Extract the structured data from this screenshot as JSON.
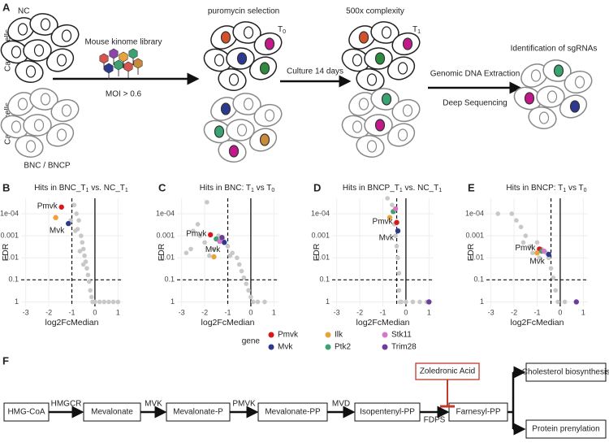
{
  "panel_a": {
    "label": "A",
    "nc": "NC",
    "cas9_top": "Cas9+ cells",
    "cas9_bottom": "Cas9+ cells",
    "bnc": "BNC / BNCP",
    "library": "Mouse kinome library",
    "moi": "MOI > 0.6",
    "puro": "puromycin selection",
    "t0": {
      "t": "T",
      "sub": "0"
    },
    "culture": "Culture 14 days",
    "complexity": "500x complexity",
    "t1": {
      "t": "T",
      "sub": "1"
    },
    "gdna": "Genomic DNA Extraction",
    "seq": "Deep Sequencing",
    "ident": "Identification of sgRNAs"
  },
  "chart_data": [
    {
      "type": "scatter",
      "label": "B",
      "title": [
        {
          "text": "Hits in  BNC_T"
        },
        {
          "sub": "1"
        },
        {
          "text": " vs. NC_T"
        },
        {
          "sub": "1"
        }
      ],
      "xlabel": "log2FcMedian",
      "ylabel": "FDR",
      "log_y": true,
      "grid": true,
      "xlim": [
        -3.2,
        1.2
      ],
      "ylim": [
        1.6,
        2e-05
      ],
      "xticks": [
        -3,
        -2,
        -1,
        0,
        1
      ],
      "yticks": [
        {
          "value": 0.0001,
          "label": "1e-04"
        },
        0.001,
        0.01,
        0.1,
        1
      ],
      "vline_dashed": -1,
      "hline_dashed": 0.1,
      "background": {
        "color": "#c8c8c8",
        "x": [
          -0.9,
          -0.8,
          -0.7,
          -0.75,
          -0.6,
          -0.55,
          -0.5,
          -0.45,
          -0.4,
          -0.35,
          -0.3,
          -0.25,
          -0.2,
          -0.15,
          -0.1,
          0,
          0.2,
          0.4,
          0.6,
          0.8,
          1,
          -1.05,
          -0.85,
          -0.65,
          -0.5
        ],
        "y": [
          4e-05,
          0.0001,
          0.0002,
          0.0005,
          0.001,
          0.002,
          0.004,
          0.008,
          0.015,
          0.03,
          0.06,
          0.12,
          0.3,
          0.6,
          1,
          1,
          1,
          1,
          1,
          1,
          1,
          0.0002,
          0.0006,
          0.005,
          0.02
        ]
      },
      "series": [
        {
          "x": [
            -1.45
          ],
          "y": [
            5e-05
          ]
        },
        {
          "x": [
            -1.15
          ],
          "y": [
            0.00028
          ]
        },
        {
          "x": [
            -1.7
          ],
          "y": [
            0.00015
          ]
        },
        {
          "x": [],
          "y": []
        },
        {
          "x": [],
          "y": []
        },
        {
          "x": [],
          "y": []
        }
      ],
      "annotations": [
        "Pmvk",
        "Mvk"
      ]
    },
    {
      "type": "scatter",
      "label": "C",
      "title": [
        {
          "text": "Hits in BNC: T"
        },
        {
          "sub": "1"
        },
        {
          "text": " vs T"
        },
        {
          "sub": "0"
        }
      ],
      "xlabel": "log2FcMedian",
      "ylabel": "FDR",
      "log_y": true,
      "grid": true,
      "xlim": [
        -3.2,
        1.2
      ],
      "ylim": [
        1.6,
        2e-05
      ],
      "xticks": [
        -3,
        -2,
        -1,
        0,
        1
      ],
      "yticks": [
        {
          "value": 0.0001,
          "label": "1e-04"
        },
        0.001,
        0.01,
        0.1,
        1
      ],
      "vline_dashed": -1,
      "hline_dashed": 0.1,
      "background": {
        "color": "#c8c8c8",
        "x": [
          -1.9,
          -2.3,
          -2.5,
          -2.2,
          -2.0,
          -2.8,
          -1.8,
          -1.6,
          -1.2,
          -1.0,
          -0.8,
          -0.6,
          -0.5,
          -0.4,
          -0.3,
          -0.2,
          -0.1,
          0,
          0.1,
          0.3,
          0.6,
          -1.4,
          -0.9,
          -2.6
        ],
        "y": [
          3e-05,
          0.0003,
          0.0006,
          0.001,
          0.002,
          0.006,
          0.008,
          0.004,
          0.0015,
          0.003,
          0.006,
          0.01,
          0.02,
          0.04,
          0.08,
          0.15,
          0.3,
          0.6,
          1,
          1,
          1,
          0.001,
          0.008,
          0.004
        ]
      },
      "series": [
        {
          "x": [
            -1.75
          ],
          "y": [
            0.0009
          ]
        },
        {
          "x": [
            -1.15
          ],
          "y": [
            0.002
          ]
        },
        {
          "x": [
            -1.6
          ],
          "y": [
            0.009
          ]
        },
        {
          "x": [
            -1.5
          ],
          "y": [
            0.0014
          ]
        },
        {
          "x": [
            -1.35
          ],
          "y": [
            0.0018
          ]
        },
        {
          "x": [
            -1.25
          ],
          "y": [
            0.0012
          ]
        }
      ],
      "annotations": [
        "Pmvk",
        "Mvk"
      ]
    },
    {
      "type": "scatter",
      "label": "D",
      "title": [
        {
          "text": "Hits in BNCP_T"
        },
        {
          "sub": "1"
        },
        {
          "text": " vs. NC_T"
        },
        {
          "sub": "1"
        }
      ],
      "xlabel": "log2FcMedian",
      "ylabel": "FDR",
      "log_y": true,
      "grid": true,
      "xlim": [
        -3.2,
        1.2
      ],
      "ylim": [
        1.6,
        2e-05
      ],
      "xticks": [
        -3,
        -2,
        -1,
        0,
        1
      ],
      "yticks": [
        {
          "value": 0.0001,
          "label": "1e-04"
        },
        0.001,
        0.01,
        0.1,
        1
      ],
      "vline_dashed": -0.4,
      "hline_dashed": 0.1,
      "background": {
        "color": "#c8c8c8",
        "x": [
          -0.8,
          -0.6,
          -0.5,
          -0.45,
          -0.4,
          -0.35,
          -0.3,
          -0.3,
          -0.2,
          0,
          0.3,
          0.6,
          0.9,
          -0.25
        ],
        "y": [
          2e-05,
          4e-05,
          0.0003,
          0.001,
          0.003,
          0.01,
          0.05,
          0.3,
          1,
          1,
          1,
          1,
          1,
          1
        ]
      },
      "series": [
        {
          "x": [
            -0.4
          ],
          "y": [
            0.00025
          ]
        },
        {
          "x": [
            -0.35
          ],
          "y": [
            0.0006
          ]
        },
        {
          "x": [
            -0.7
          ],
          "y": [
            0.00015
          ]
        },
        {
          "x": [
            -0.55
          ],
          "y": [
            8e-05
          ]
        },
        {
          "x": [
            -0.45
          ],
          "y": [
            6e-05
          ]
        },
        {
          "x": [
            1
          ],
          "y": [
            1
          ]
        }
      ],
      "annotations": [
        "Pmvk",
        "Mvk"
      ]
    },
    {
      "type": "scatter",
      "label": "E",
      "title": [
        {
          "text": "Hits in BNCP: T"
        },
        {
          "sub": "1"
        },
        {
          "text": " vs T"
        },
        {
          "sub": "0"
        }
      ],
      "xlabel": "log2FcMedian",
      "ylabel": "FDR",
      "log_y": true,
      "grid": true,
      "xlim": [
        -3.2,
        1.2
      ],
      "ylim": [
        1.6,
        2e-05
      ],
      "xticks": [
        -3,
        -2,
        -1,
        0,
        1
      ],
      "yticks": [
        {
          "value": 0.0001,
          "label": "1e-04"
        },
        0.001,
        0.01,
        0.1,
        1
      ],
      "vline_dashed": -0.4,
      "hline_dashed": 0.1,
      "background": {
        "color": "#c8c8c8",
        "x": [
          -2.7,
          -2.1,
          -1.9,
          -1.7,
          -1.5,
          -1.3,
          -1.0,
          -0.8,
          -0.6,
          -0.5,
          -0.4,
          -0.3,
          -0.2,
          -0.1,
          0.2,
          -1.6,
          -1.2,
          -0.9
        ],
        "y": [
          0.0001,
          0.0001,
          0.0002,
          0.0004,
          0.001,
          0.003,
          0.002,
          0.004,
          0.006,
          0.01,
          0.03,
          0.08,
          0.3,
          1,
          1,
          0.002,
          0.006,
          0.01
        ]
      },
      "series": [
        {
          "x": [
            -0.9
          ],
          "y": [
            0.004
          ]
        },
        {
          "x": [
            -0.5
          ],
          "y": [
            0.007
          ]
        },
        {
          "x": [
            -1.0
          ],
          "y": [
            0.006
          ]
        },
        {
          "x": [
            -0.8
          ],
          "y": [
            0.005
          ]
        },
        {
          "x": [
            -0.7
          ],
          "y": [
            0.005
          ]
        },
        {
          "x": [
            0.7
          ],
          "y": [
            1
          ]
        }
      ],
      "annotations": [
        "Pmvk",
        "Mvk"
      ]
    }
  ],
  "legend": {
    "title": "gene",
    "entries": [
      {
        "name": "Pmvk",
        "color": "#d7191c"
      },
      {
        "name": "Mvk",
        "color": "#2b3990"
      },
      {
        "name": "Ilk",
        "color": "#e8a33d"
      },
      {
        "name": "Ptk2",
        "color": "#3aa371"
      },
      {
        "name": "Stk11",
        "color": "#d876c6"
      },
      {
        "name": "Trim28",
        "color": "#6a3d9a"
      }
    ]
  },
  "panel_f": {
    "label": "F",
    "nodes": [
      "HMG-CoA",
      "Mevalonate",
      "Mevalonate-P",
      "Mevalonate-PP",
      "Isopentenyl-PP",
      "Farnesyl-PP"
    ],
    "enzymes": [
      "HMGCR",
      "MVK",
      "PMVK",
      "MVD",
      "FDPS"
    ],
    "inhibitor": "Zoledronic Acid",
    "outputs": [
      "Cholesterol biosynthesis",
      "Protein prenylation"
    ]
  }
}
